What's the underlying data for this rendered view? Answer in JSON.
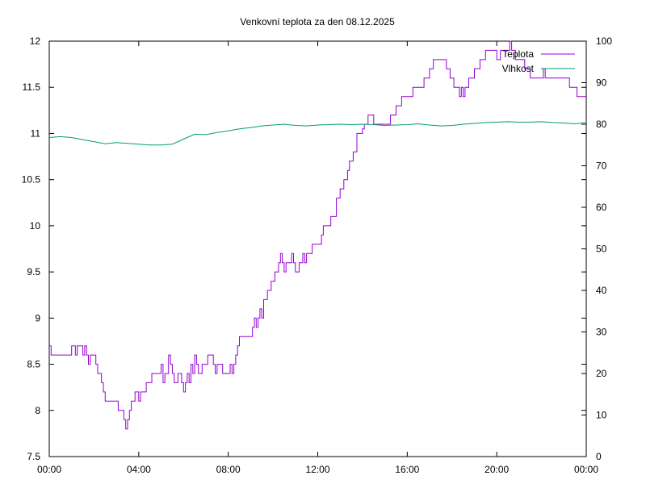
{
  "chart_data": {
    "type": "line",
    "title": "Venkovní teplota za den 08.12.2025",
    "xlabel": "",
    "ylabel": "",
    "y2label": "",
    "grid": false,
    "legend_position": "top-right",
    "x_ticks": [
      "00:00",
      "04:00",
      "08:00",
      "12:00",
      "16:00",
      "20:00",
      "00:00"
    ],
    "x_range_hours": [
      0,
      24
    ],
    "y_ticks": [
      "7.5",
      "8",
      "8.5",
      "9",
      "9.5",
      "10",
      "10.5",
      "11",
      "11.5",
      "12"
    ],
    "y_range": [
      7.5,
      12
    ],
    "y2_ticks": [
      "0",
      "10",
      "20",
      "30",
      "40",
      "50",
      "60",
      "70",
      "80",
      "90",
      "100"
    ],
    "y2_range": [
      0,
      100
    ],
    "series": [
      {
        "name": "Teplota",
        "axis": "left",
        "color": "#9400d3",
        "points": [
          [
            "00:00",
            8.7
          ],
          [
            "00:05",
            8.6
          ],
          [
            "00:30",
            8.6
          ],
          [
            "00:55",
            8.6
          ],
          [
            "01:00",
            8.7
          ],
          [
            "01:10",
            8.6
          ],
          [
            "01:15",
            8.7
          ],
          [
            "01:25",
            8.7
          ],
          [
            "01:30",
            8.6
          ],
          [
            "01:35",
            8.7
          ],
          [
            "01:40",
            8.6
          ],
          [
            "01:45",
            8.5
          ],
          [
            "01:50",
            8.6
          ],
          [
            "02:00",
            8.6
          ],
          [
            "02:05",
            8.5
          ],
          [
            "02:10",
            8.4
          ],
          [
            "02:20",
            8.3
          ],
          [
            "02:25",
            8.2
          ],
          [
            "02:30",
            8.1
          ],
          [
            "02:45",
            8.1
          ],
          [
            "03:00",
            8.1
          ],
          [
            "03:05",
            8.0
          ],
          [
            "03:15",
            8.0
          ],
          [
            "03:20",
            7.9
          ],
          [
            "03:25",
            7.8
          ],
          [
            "03:30",
            7.9
          ],
          [
            "03:35",
            8.0
          ],
          [
            "03:40",
            8.1
          ],
          [
            "03:45",
            8.1
          ],
          [
            "03:50",
            8.2
          ],
          [
            "04:00",
            8.1
          ],
          [
            "04:05",
            8.2
          ],
          [
            "04:15",
            8.2
          ],
          [
            "04:20",
            8.3
          ],
          [
            "04:30",
            8.3
          ],
          [
            "04:35",
            8.4
          ],
          [
            "04:50",
            8.4
          ],
          [
            "05:00",
            8.5
          ],
          [
            "05:05",
            8.3
          ],
          [
            "05:10",
            8.4
          ],
          [
            "05:15",
            8.4
          ],
          [
            "05:20",
            8.6
          ],
          [
            "05:25",
            8.5
          ],
          [
            "05:30",
            8.4
          ],
          [
            "05:35",
            8.3
          ],
          [
            "05:45",
            8.4
          ],
          [
            "05:55",
            8.3
          ],
          [
            "06:00",
            8.2
          ],
          [
            "06:05",
            8.3
          ],
          [
            "06:10",
            8.4
          ],
          [
            "06:15",
            8.3
          ],
          [
            "06:20",
            8.5
          ],
          [
            "06:25",
            8.4
          ],
          [
            "06:30",
            8.6
          ],
          [
            "06:35",
            8.5
          ],
          [
            "06:40",
            8.4
          ],
          [
            "06:50",
            8.5
          ],
          [
            "07:00",
            8.5
          ],
          [
            "07:05",
            8.6
          ],
          [
            "07:15",
            8.6
          ],
          [
            "07:20",
            8.5
          ],
          [
            "07:25",
            8.4
          ],
          [
            "07:30",
            8.5
          ],
          [
            "07:40",
            8.5
          ],
          [
            "07:45",
            8.4
          ],
          [
            "07:55",
            8.4
          ],
          [
            "08:00",
            8.4
          ],
          [
            "08:05",
            8.5
          ],
          [
            "08:10",
            8.4
          ],
          [
            "08:15",
            8.5
          ],
          [
            "08:20",
            8.6
          ],
          [
            "08:25",
            8.7
          ],
          [
            "08:30",
            8.8
          ],
          [
            "08:45",
            8.8
          ],
          [
            "09:00",
            8.8
          ],
          [
            "09:05",
            8.9
          ],
          [
            "09:10",
            9.0
          ],
          [
            "09:15",
            8.9
          ],
          [
            "09:20",
            9.0
          ],
          [
            "09:25",
            9.1
          ],
          [
            "09:30",
            9.0
          ],
          [
            "09:35",
            9.2
          ],
          [
            "09:45",
            9.3
          ],
          [
            "09:55",
            9.4
          ],
          [
            "10:00",
            9.4
          ],
          [
            "10:05",
            9.5
          ],
          [
            "10:15",
            9.6
          ],
          [
            "10:20",
            9.7
          ],
          [
            "10:25",
            9.6
          ],
          [
            "10:30",
            9.5
          ],
          [
            "10:35",
            9.6
          ],
          [
            "10:45",
            9.6
          ],
          [
            "10:50",
            9.7
          ],
          [
            "10:55",
            9.6
          ],
          [
            "11:00",
            9.5
          ],
          [
            "11:05",
            9.5
          ],
          [
            "11:10",
            9.6
          ],
          [
            "11:15",
            9.6
          ],
          [
            "11:20",
            9.7
          ],
          [
            "11:25",
            9.6
          ],
          [
            "11:30",
            9.7
          ],
          [
            "11:40",
            9.7
          ],
          [
            "11:45",
            9.8
          ],
          [
            "12:00",
            9.8
          ],
          [
            "12:10",
            9.9
          ],
          [
            "12:15",
            10.0
          ],
          [
            "12:30",
            10.0
          ],
          [
            "12:35",
            10.1
          ],
          [
            "12:45",
            10.1
          ],
          [
            "12:50",
            10.3
          ],
          [
            "13:00",
            10.4
          ],
          [
            "13:10",
            10.5
          ],
          [
            "13:20",
            10.6
          ],
          [
            "13:25",
            10.7
          ],
          [
            "13:35",
            10.8
          ],
          [
            "13:45",
            11.0
          ],
          [
            "14:00",
            11.05
          ],
          [
            "14:05",
            11.1
          ],
          [
            "14:15",
            11.2
          ],
          [
            "14:25",
            11.2
          ],
          [
            "14:30",
            11.1
          ],
          [
            "14:45",
            11.1
          ],
          [
            "15:00",
            11.1
          ],
          [
            "15:10",
            11.1
          ],
          [
            "15:15",
            11.2
          ],
          [
            "15:20",
            11.2
          ],
          [
            "15:30",
            11.3
          ],
          [
            "15:45",
            11.4
          ],
          [
            "16:00",
            11.4
          ],
          [
            "16:15",
            11.5
          ],
          [
            "16:30",
            11.5
          ],
          [
            "16:45",
            11.6
          ],
          [
            "17:00",
            11.7
          ],
          [
            "17:10",
            11.8
          ],
          [
            "17:25",
            11.8
          ],
          [
            "17:40",
            11.8
          ],
          [
            "17:45",
            11.7
          ],
          [
            "17:55",
            11.6
          ],
          [
            "18:05",
            11.5
          ],
          [
            "18:15",
            11.5
          ],
          [
            "18:20",
            11.4
          ],
          [
            "18:25",
            11.5
          ],
          [
            "18:30",
            11.4
          ],
          [
            "18:35",
            11.5
          ],
          [
            "18:45",
            11.6
          ],
          [
            "19:00",
            11.7
          ],
          [
            "19:15",
            11.8
          ],
          [
            "19:30",
            11.9
          ],
          [
            "19:45",
            11.9
          ],
          [
            "20:00",
            11.8
          ],
          [
            "20:10",
            11.9
          ],
          [
            "20:30",
            11.9
          ],
          [
            "20:35",
            12.0
          ],
          [
            "20:40",
            11.9
          ],
          [
            "20:50",
            11.8
          ],
          [
            "21:00",
            11.8
          ],
          [
            "21:15",
            11.7
          ],
          [
            "21:30",
            11.6
          ],
          [
            "21:45",
            11.6
          ],
          [
            "22:00",
            11.6
          ],
          [
            "22:05",
            11.7
          ],
          [
            "22:10",
            11.6
          ],
          [
            "22:30",
            11.6
          ],
          [
            "22:45",
            11.6
          ],
          [
            "23:00",
            11.6
          ],
          [
            "23:15",
            11.5
          ],
          [
            "23:30",
            11.5
          ],
          [
            "23:35",
            11.4
          ],
          [
            "23:55",
            11.4
          ],
          [
            "24:00",
            11.4
          ]
        ]
      },
      {
        "name": "Vlhkost",
        "axis": "right",
        "color": "#009e73",
        "points": [
          [
            "00:00",
            76.8
          ],
          [
            "00:30",
            77.0
          ],
          [
            "01:00",
            76.8
          ],
          [
            "01:30",
            76.3
          ],
          [
            "02:00",
            75.8
          ],
          [
            "02:30",
            75.3
          ],
          [
            "03:00",
            75.6
          ],
          [
            "03:30",
            75.4
          ],
          [
            "04:00",
            75.2
          ],
          [
            "04:30",
            75.0
          ],
          [
            "05:00",
            75.0
          ],
          [
            "05:30",
            75.2
          ],
          [
            "06:00",
            76.4
          ],
          [
            "06:30",
            77.6
          ],
          [
            "07:00",
            77.5
          ],
          [
            "07:30",
            78.0
          ],
          [
            "08:00",
            78.4
          ],
          [
            "08:30",
            78.9
          ],
          [
            "09:00",
            79.2
          ],
          [
            "09:30",
            79.6
          ],
          [
            "10:00",
            79.8
          ],
          [
            "10:30",
            80.0
          ],
          [
            "11:00",
            79.7
          ],
          [
            "11:30",
            79.6
          ],
          [
            "12:00",
            79.8
          ],
          [
            "12:30",
            79.9
          ],
          [
            "13:00",
            80.0
          ],
          [
            "13:30",
            79.9
          ],
          [
            "14:00",
            80.0
          ],
          [
            "14:30",
            79.9
          ],
          [
            "15:00",
            79.7
          ],
          [
            "15:30",
            79.8
          ],
          [
            "16:00",
            79.9
          ],
          [
            "16:30",
            80.1
          ],
          [
            "17:00",
            79.8
          ],
          [
            "17:30",
            79.6
          ],
          [
            "18:00",
            79.7
          ],
          [
            "18:30",
            80.0
          ],
          [
            "19:00",
            80.2
          ],
          [
            "19:30",
            80.4
          ],
          [
            "20:00",
            80.5
          ],
          [
            "20:30",
            80.6
          ],
          [
            "21:00",
            80.5
          ],
          [
            "21:30",
            80.5
          ],
          [
            "22:00",
            80.6
          ],
          [
            "22:30",
            80.4
          ],
          [
            "23:00",
            80.3
          ],
          [
            "23:30",
            80.1
          ],
          [
            "24:00",
            80.4
          ]
        ]
      }
    ]
  }
}
